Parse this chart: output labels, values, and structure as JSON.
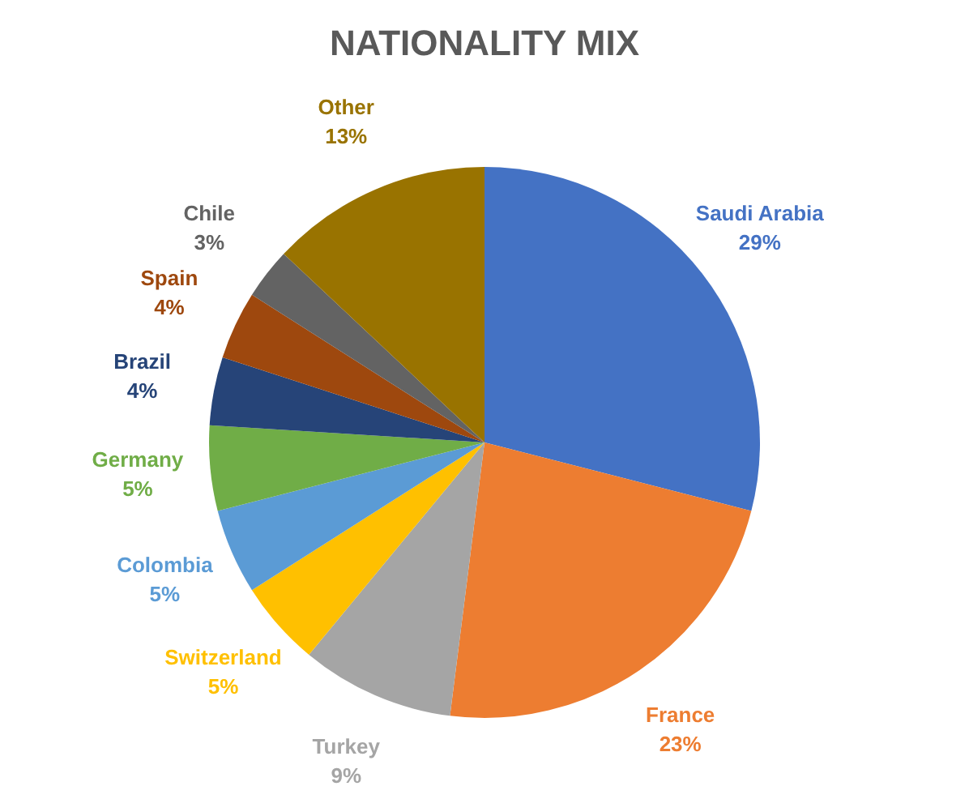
{
  "chart_data": {
    "type": "pie",
    "title": "NATIONALITY MIX",
    "categories": [
      "Saudi Arabia",
      "France",
      "Turkey",
      "Switzerland",
      "Colombia",
      "Germany",
      "Brazil",
      "Spain",
      "Chile",
      "Other"
    ],
    "values": [
      29,
      23,
      9,
      5,
      5,
      5,
      4,
      4,
      3,
      13
    ],
    "value_labels": [
      "29%",
      "23%",
      "9%",
      "5%",
      "5%",
      "5%",
      "4%",
      "4%",
      "3%",
      "13%"
    ],
    "colors": [
      "#4472c4",
      "#ed7d31",
      "#a5a5a5",
      "#ffc000",
      "#5b9bd5",
      "#70ad47",
      "#264478",
      "#9e480e",
      "#636363",
      "#997300"
    ],
    "legend": false
  }
}
